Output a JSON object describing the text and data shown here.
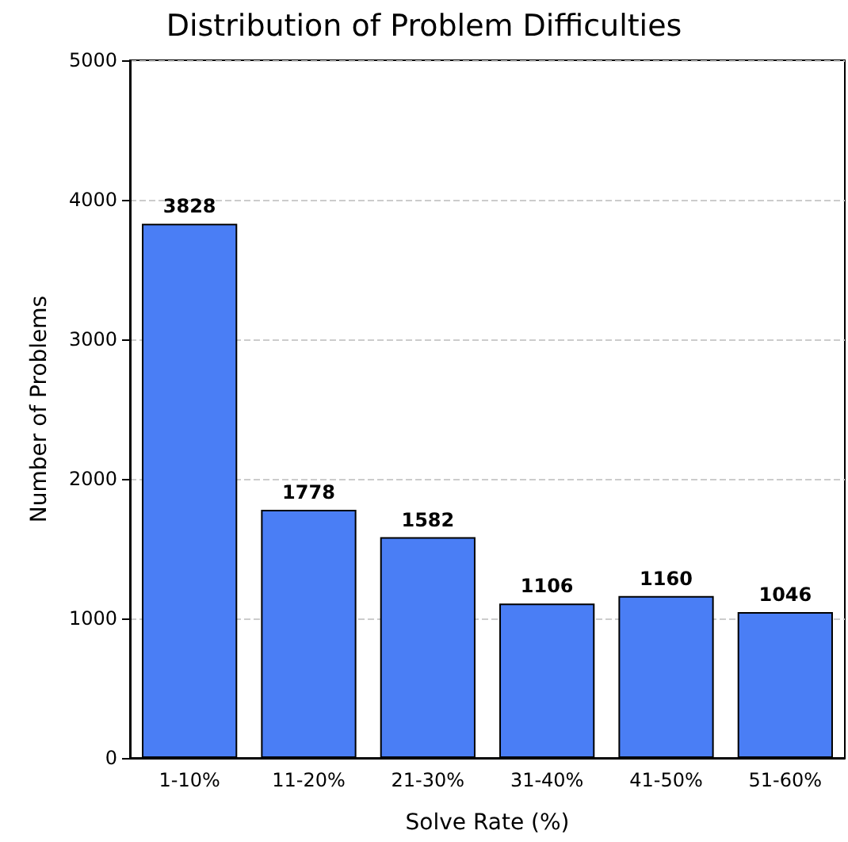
{
  "chart_data": {
    "type": "bar",
    "title": "Distribution of Problem Difficulties",
    "xlabel": "Solve Rate (%)",
    "ylabel": "Number of Problems",
    "categories": [
      "1-10%",
      "11-20%",
      "21-30%",
      "31-40%",
      "41-50%",
      "51-60%"
    ],
    "values": [
      3828,
      1778,
      1582,
      1106,
      1160,
      1046
    ],
    "color": "#4a7ef5",
    "ylim": [
      0,
      5000
    ],
    "yticks": [
      0,
      1000,
      2000,
      3000,
      4000,
      5000
    ],
    "grid": "y",
    "data_labels": true
  }
}
